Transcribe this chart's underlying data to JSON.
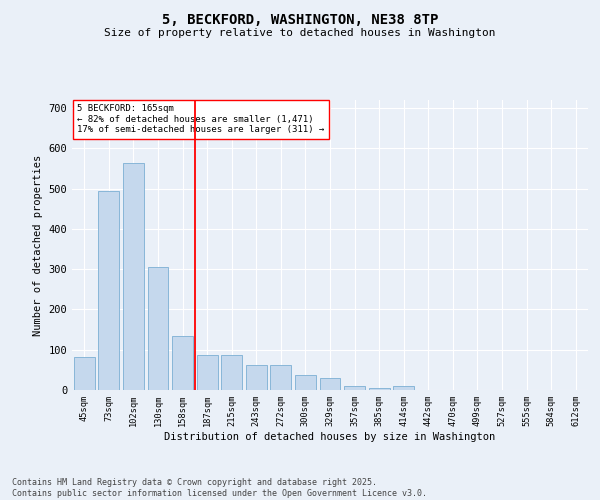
{
  "title": "5, BECKFORD, WASHINGTON, NE38 8TP",
  "subtitle": "Size of property relative to detached houses in Washington",
  "xlabel": "Distribution of detached houses by size in Washington",
  "ylabel": "Number of detached properties",
  "categories": [
    "45sqm",
    "73sqm",
    "102sqm",
    "130sqm",
    "158sqm",
    "187sqm",
    "215sqm",
    "243sqm",
    "272sqm",
    "300sqm",
    "329sqm",
    "357sqm",
    "385sqm",
    "414sqm",
    "442sqm",
    "470sqm",
    "499sqm",
    "527sqm",
    "555sqm",
    "584sqm",
    "612sqm"
  ],
  "values": [
    83,
    493,
    563,
    305,
    135,
    87,
    87,
    63,
    62,
    37,
    29,
    10,
    6,
    10,
    0,
    0,
    0,
    0,
    0,
    0,
    0
  ],
  "bar_color": "#c5d8ed",
  "bar_edge_color": "#7bafd4",
  "vline_color": "red",
  "vline_x": 4.5,
  "annotation_text": "5 BECKFORD: 165sqm\n← 82% of detached houses are smaller (1,471)\n17% of semi-detached houses are larger (311) →",
  "annotation_box_color": "white",
  "annotation_box_edge_color": "red",
  "ylim": [
    0,
    720
  ],
  "yticks": [
    0,
    100,
    200,
    300,
    400,
    500,
    600,
    700
  ],
  "background_color": "#eaf0f8",
  "grid_color": "white",
  "footer_line1": "Contains HM Land Registry data © Crown copyright and database right 2025.",
  "footer_line2": "Contains public sector information licensed under the Open Government Licence v3.0."
}
